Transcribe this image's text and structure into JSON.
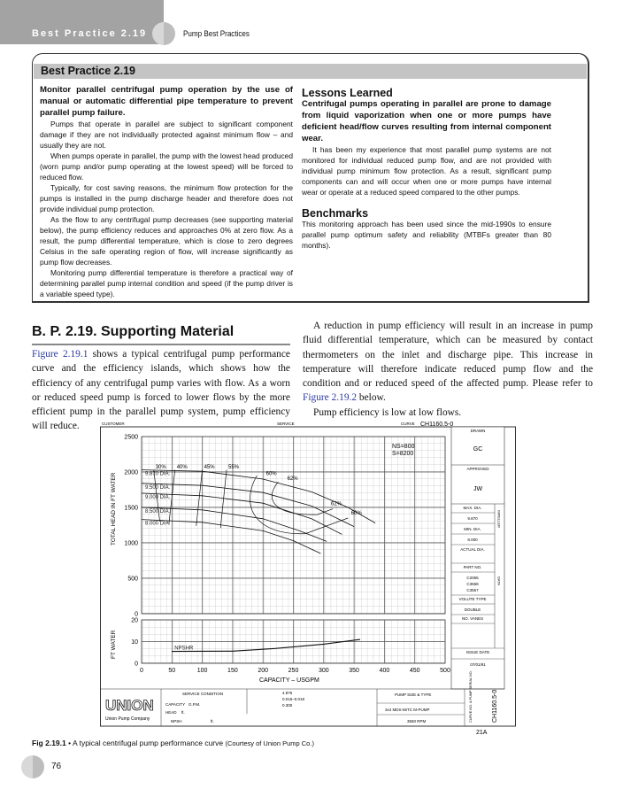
{
  "header": {
    "section": "Best Practice 2.19",
    "chapter": "Pump Best Practices"
  },
  "box": {
    "title": "Best Practice 2.19",
    "lead": "Monitor parallel centrifugal pump operation by the use of manual or automatic differential pipe temperature to prevent parallel pump failure.",
    "paragraphs": [
      "Pumps that operate in parallel are subject to significant component damage if they are not individually protected against minimum flow – and usually they are not.",
      "When pumps operate in parallel, the pump with the lowest head produced (worn pump and/or pump operating at the lowest speed) will be forced to reduced flow.",
      "Typically, for cost saving reasons, the minimum flow protection for the pumps is installed in the pump discharge header and therefore does not provide individual pump protection.",
      "As the flow to any centrifugal pump decreases (see supporting material below), the pump efficiency reduces and approaches 0% at zero flow. As a result, the pump differential temperature, which is close to zero degrees Celsius in the safe operating region of flow, will increase significantly as pump flow decreases.",
      "Monitoring pump differential temperature is therefore a practical way of determining parallel pump internal condition and speed (if the pump driver is a variable speed type)."
    ],
    "lessons_heading": "Lessons Learned",
    "lessons_lead": "Centrifugal pumps operating in parallel are prone to damage from liquid vaporization when one or more pumps have deficient head/flow curves resulting from internal component wear.",
    "lessons_text": "It has been my experience that most parallel pump systems are not monitored for individual reduced pump flow, and are not provided with individual pump minimum flow protection. As a result, significant pump components can and will occur when one or more pumps have internal wear or operate at a reduced speed compared to the other pumps.",
    "benchmarks_heading": "Benchmarks",
    "benchmarks_text": "This monitoring approach has been used since the mid-1990s to ensure parallel pump optimum safety and reliability (MTBFs greater than 80 months)."
  },
  "supporting": {
    "title": "B. P. 2.19. Supporting Material",
    "p1_link": "Figure 2.19.1",
    "p1_text": " shows a typical centrifugal pump performance curve and the efficiency islands, which shows how the efficiency of any centrifugal pump varies with flow. As a worn or reduced speed pump is forced to lower flows by the more efficient pump in the parallel pump system, pump efficiency will reduce.",
    "p2_text": "A reduction in pump efficiency will result in an increase in pump fluid differential temperature, which can be measured by contact thermometers on the inlet and discharge pipe. This increase in temperature will therefore indicate reduced pump flow and the condition and or reduced speed of the affected pump. Please refer to ",
    "p2_link": "Figure 2.19.2",
    "p2_end": " below.",
    "p3_text": "Pump efficiency is low at low flows."
  },
  "figure": {
    "top_labels": {
      "customer": "CUSTOMER",
      "service": "SERVICE",
      "curve": "CURVE",
      "curve_no": "CH1160.5-0"
    },
    "ns": "NS=800",
    "s": "S=8200",
    "side": {
      "drawn": "DRAWN",
      "drawn_val": "GC",
      "approved": "APPROVED",
      "approved_val": "JW",
      "max_dia": "MAX. DIA.",
      "max_dia_val": "9.870",
      "min_dia": "MIN. DIA.",
      "min_dia_val": "8.000",
      "actual_dia": "ACTUAL DIA.",
      "part_no": "PART NO.",
      "part_vals": [
        "C2065",
        "C3558",
        "C3557"
      ],
      "volute": "VOLUTE TYPE",
      "volute_val": "DOUBLE",
      "vanes": "NO. VANES",
      "issue": "ISSUE DATE",
      "issue_val": "07/01/91",
      "impeller": "IMPELLER",
      "data": "DATA",
      "curve_no_label": "CURVE NO. & PUMP SERIAL NO.",
      "curve_no": "CH1160.5-0",
      "sheet": "21A"
    },
    "footer": {
      "brand": "UNION",
      "company": "Union Pump Company",
      "service_condition": "SERVICE CONDITION",
      "capacity": "CAPACITY",
      "capacity_val": "G.P.M.",
      "head": "HEAD",
      "head_val": "ft.",
      "npsh": "NPSH",
      "npsh_unit": "ft.",
      "sizes": [
        "4.875",
        "0.016–0.018",
        "0.300"
      ],
      "pump_size": "PUMP SIZE & TYPE",
      "pump_type": "3x4 MDS-55TC M-PUMP",
      "rpm": "3550 RPM"
    },
    "caption_label": "Fig 2.19.1",
    "caption_bullet": "•",
    "caption_text": "A typical centrifugal pump performance curve",
    "caption_credit": "(Courtesy of Union Pump Co.)"
  },
  "chart_data": {
    "type": "line",
    "xlabel": "CAPACITY – USGPM",
    "ylabel_head": "TOTAL HEAD IN FT WATER",
    "ylabel_npsh": "FT WATER",
    "xlim": [
      0,
      500
    ],
    "ylim_head": [
      0,
      2500
    ],
    "ylim_npsh": [
      0,
      20
    ],
    "x_ticks": [
      0,
      50,
      100,
      150,
      200,
      250,
      300,
      350,
      400,
      450,
      500
    ],
    "y_ticks_head": [
      0,
      500,
      1000,
      1500,
      2000,
      2500
    ],
    "y_ticks_npsh": [
      0,
      10,
      20
    ],
    "grid": true,
    "series": [
      {
        "name": "9.870 DIA.",
        "points": [
          [
            0,
            2030
          ],
          [
            100,
            2010
          ],
          [
            200,
            1900
          ],
          [
            280,
            1720
          ],
          [
            340,
            1500
          ],
          [
            385,
            1280
          ]
        ]
      },
      {
        "name": "9.500 DIA.",
        "points": [
          [
            0,
            1840
          ],
          [
            100,
            1810
          ],
          [
            200,
            1710
          ],
          [
            280,
            1520
          ],
          [
            350,
            1230
          ]
        ]
      },
      {
        "name": "9.000 DIA.",
        "points": [
          [
            0,
            1700
          ],
          [
            100,
            1665
          ],
          [
            200,
            1560
          ],
          [
            280,
            1340
          ],
          [
            330,
            1120
          ]
        ]
      },
      {
        "name": "8.500 DIA.",
        "points": [
          [
            0,
            1500
          ],
          [
            100,
            1465
          ],
          [
            200,
            1340
          ],
          [
            260,
            1170
          ],
          [
            305,
            1020
          ]
        ]
      },
      {
        "name": "8.000 DIA.",
        "points": [
          [
            0,
            1330
          ],
          [
            100,
            1290
          ],
          [
            200,
            1170
          ],
          [
            250,
            1030
          ],
          [
            295,
            850
          ]
        ]
      },
      {
        "name": "NPSHR",
        "points": [
          [
            50,
            5.5
          ],
          [
            150,
            5.6
          ],
          [
            220,
            6.8
          ],
          [
            300,
            8.8
          ],
          [
            360,
            11
          ]
        ]
      }
    ],
    "efficiency_labels": [
      "30%",
      "40%",
      "45%",
      "55%",
      "60%",
      "62%",
      "62%",
      "60%"
    ]
  },
  "page": {
    "number": "76"
  }
}
